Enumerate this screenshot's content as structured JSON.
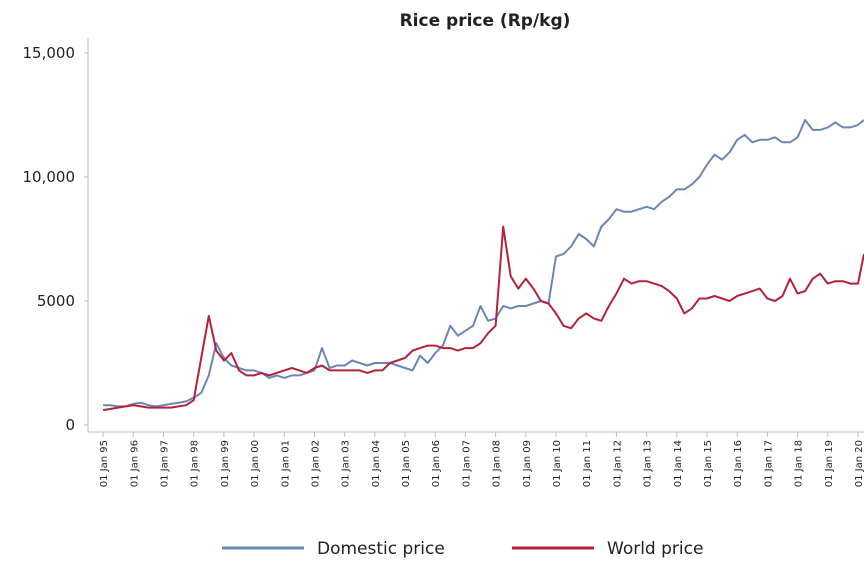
{
  "chart_data": {
    "type": "line",
    "title": "Rice price (Rp/kg)",
    "x": [
      1995,
      1995.25,
      1995.5,
      1995.75,
      1996,
      1996.25,
      1996.5,
      1996.75,
      1997,
      1997.25,
      1997.5,
      1997.75,
      1998,
      1998.25,
      1998.5,
      1998.75,
      1999,
      1999.25,
      1999.5,
      1999.75,
      2000,
      2000.25,
      2000.5,
      2000.75,
      2001,
      2001.25,
      2001.5,
      2001.75,
      2002,
      2002.25,
      2002.5,
      2002.75,
      2003,
      2003.25,
      2003.5,
      2003.75,
      2004,
      2004.25,
      2004.5,
      2004.75,
      2005,
      2005.25,
      2005.5,
      2005.75,
      2006,
      2006.25,
      2006.5,
      2006.75,
      2007,
      2007.25,
      2007.5,
      2007.75,
      2008,
      2008.25,
      2008.5,
      2008.75,
      2009,
      2009.25,
      2009.5,
      2009.75,
      2010,
      2010.25,
      2010.5,
      2010.75,
      2011,
      2011.25,
      2011.5,
      2011.75,
      2012,
      2012.25,
      2012.5,
      2012.75,
      2013,
      2013.25,
      2013.5,
      2013.75,
      2014,
      2014.25,
      2014.5,
      2014.75,
      2015,
      2015.25,
      2015.5,
      2015.75,
      2016,
      2016.25,
      2016.5,
      2016.75,
      2017,
      2017.25,
      2017.5,
      2017.75,
      2018,
      2018.25,
      2018.5,
      2018.75,
      2019,
      2019.25,
      2019.5,
      2019.75,
      2020,
      2020.2
    ],
    "series": [
      {
        "name": "Domestic price",
        "color": "#6a86b4",
        "values": [
          800,
          800,
          750,
          750,
          850,
          900,
          800,
          750,
          800,
          850,
          900,
          950,
          1100,
          1300,
          2000,
          3300,
          2700,
          2400,
          2300,
          2200,
          2200,
          2100,
          1900,
          2000,
          1900,
          2000,
          2000,
          2100,
          2200,
          3100,
          2300,
          2400,
          2400,
          2600,
          2500,
          2400,
          2500,
          2500,
          2500,
          2400,
          2300,
          2200,
          2800,
          2500,
          2900,
          3200,
          4000,
          3600,
          3800,
          4000,
          4800,
          4200,
          4300,
          4800,
          4700,
          4800,
          4800,
          4900,
          5000,
          4900,
          6800,
          6900,
          7200,
          7700,
          7500,
          7200,
          8000,
          8300,
          8700,
          8600,
          8600,
          8700,
          8800,
          8700,
          9000,
          9200,
          9500,
          9500,
          9700,
          10000,
          10500,
          10900,
          10700,
          11000,
          11500,
          11700,
          11400,
          11500,
          11500,
          11600,
          11400,
          11400,
          11600,
          12300,
          11900,
          11900,
          12000,
          12200,
          12000,
          12000,
          12100,
          12300
        ]
      },
      {
        "name": "World price",
        "color": "#b5213a",
        "values": [
          600,
          650,
          700,
          750,
          800,
          750,
          700,
          700,
          700,
          700,
          750,
          800,
          1000,
          2700,
          4400,
          3000,
          2600,
          2900,
          2200,
          2000,
          2000,
          2100,
          2000,
          2100,
          2200,
          2300,
          2200,
          2100,
          2300,
          2400,
          2200,
          2200,
          2200,
          2200,
          2200,
          2100,
          2200,
          2200,
          2500,
          2600,
          2700,
          3000,
          3100,
          3200,
          3200,
          3100,
          3100,
          3000,
          3100,
          3100,
          3300,
          3700,
          4000,
          8000,
          6000,
          5500,
          5900,
          5500,
          5000,
          4900,
          4500,
          4000,
          3900,
          4300,
          4500,
          4300,
          4200,
          4800,
          5300,
          5900,
          5700,
          5800,
          5800,
          5700,
          5600,
          5400,
          5100,
          4500,
          4700,
          5100,
          5100,
          5200,
          5100,
          5000,
          5200,
          5300,
          5400,
          5500,
          5100,
          5000,
          5200,
          5900,
          5300,
          5400,
          5900,
          6100,
          5700,
          5800,
          5800,
          5700,
          5700,
          6900
        ]
      }
    ],
    "xlim": [
      1994.5,
      2020.2
    ],
    "xticks": [
      {
        "value": 1995,
        "label": "01 Jan 95"
      },
      {
        "value": 1996,
        "label": "01 Jan 96"
      },
      {
        "value": 1997,
        "label": "01 Jan 97"
      },
      {
        "value": 1998,
        "label": "01 Jan 98"
      },
      {
        "value": 1999,
        "label": "01 Jan 99"
      },
      {
        "value": 2000,
        "label": "01 Jan 00"
      },
      {
        "value": 2001,
        "label": "01 Jan 01"
      },
      {
        "value": 2002,
        "label": "01 Jan 02"
      },
      {
        "value": 2003,
        "label": "01 Jan 03"
      },
      {
        "value": 2004,
        "label": "01 Jan 04"
      },
      {
        "value": 2005,
        "label": "01 Jan 05"
      },
      {
        "value": 2006,
        "label": "01 Jan 06"
      },
      {
        "value": 2007,
        "label": "01 Jan 07"
      },
      {
        "value": 2008,
        "label": "01 Jan 08"
      },
      {
        "value": 2009,
        "label": "01 Jan 09"
      },
      {
        "value": 2010,
        "label": "01 Jan 10"
      },
      {
        "value": 2011,
        "label": "01 Jan 11"
      },
      {
        "value": 2012,
        "label": "01 Jan 12"
      },
      {
        "value": 2013,
        "label": "01 Jan 13"
      },
      {
        "value": 2014,
        "label": "01 Jan 14"
      },
      {
        "value": 2015,
        "label": "01 Jan 15"
      },
      {
        "value": 2016,
        "label": "01 Jan 16"
      },
      {
        "value": 2017,
        "label": "01 Jan 17"
      },
      {
        "value": 2018,
        "label": "01 Jan 18"
      },
      {
        "value": 2019,
        "label": "01 Jan 19"
      },
      {
        "value": 2020,
        "label": "01 Jan 20"
      }
    ],
    "ylim": [
      0,
      15000
    ],
    "yticks": [
      0,
      5000,
      {
        "value": 10000,
        "label": "10,000"
      },
      {
        "value": 15000,
        "label": "15,000"
      }
    ],
    "grid": false,
    "legend": "bottom"
  }
}
